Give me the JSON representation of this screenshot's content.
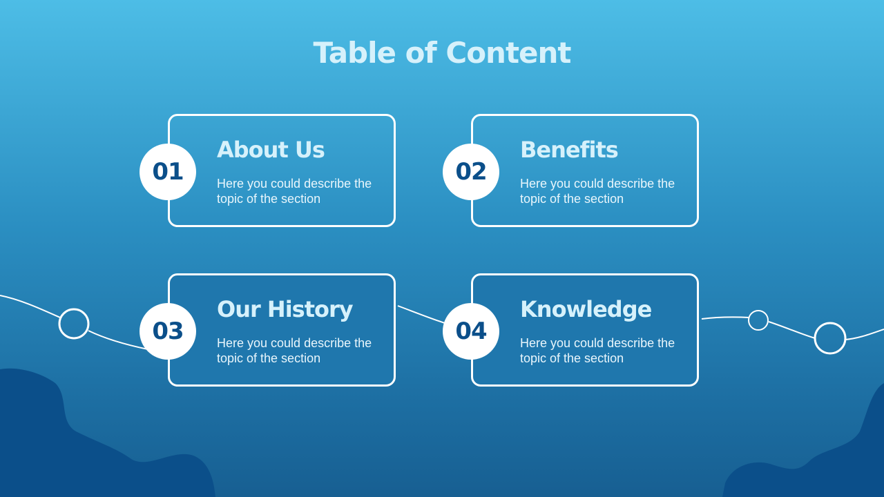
{
  "title": "Table of Content",
  "sections": [
    {
      "number": "01",
      "heading": "About Us",
      "description": "Here you could describe the topic of the section"
    },
    {
      "number": "02",
      "heading": "Benefits",
      "description": "Here you could describe the topic of the section"
    },
    {
      "number": "03",
      "heading": "Our History",
      "description": "Here you could describe the topic of the section"
    },
    {
      "number": "04",
      "heading": "Knowledge",
      "description": "Here you could describe the topic of the section"
    }
  ],
  "colors": {
    "background_top": "#4dbde6",
    "background_bottom": "#175f92",
    "blob": "#0b4f8a",
    "number_text": "#0b4f8a",
    "heading_text": "#d6f1fb",
    "outline": "#ffffff"
  }
}
